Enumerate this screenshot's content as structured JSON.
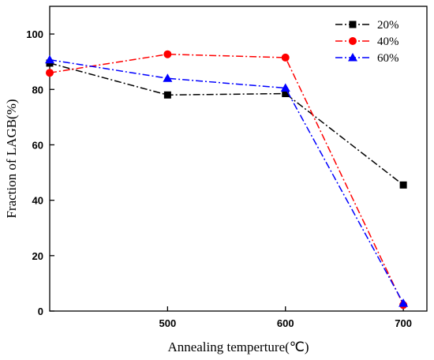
{
  "chart_data": {
    "type": "line",
    "xlabel": "Annealing temperture(℃)",
    "ylabel": "Fraction of LAGB(%)",
    "xlim": [
      400,
      720
    ],
    "ylim": [
      0,
      110
    ],
    "x_ticks": [
      500,
      600,
      700
    ],
    "x_tick_labels": [
      "500",
      "600",
      "700"
    ],
    "y_ticks": [
      0,
      20,
      40,
      60,
      80,
      100
    ],
    "y_tick_labels": [
      "0",
      "20",
      "40",
      "60",
      "80",
      "100"
    ],
    "legend_position": "top-right",
    "grid": false,
    "series": [
      {
        "name": "20%",
        "color": "#000000",
        "marker": "square",
        "x": [
          400,
          500,
          600,
          700
        ],
        "values": [
          89.5,
          78.0,
          78.5,
          45.5
        ]
      },
      {
        "name": "40%",
        "color": "#ff0000",
        "marker": "circle",
        "x": [
          400,
          500,
          600,
          700
        ],
        "values": [
          86.0,
          92.7,
          91.5,
          2.2
        ]
      },
      {
        "name": "60%",
        "color": "#0000ff",
        "marker": "triangle",
        "x": [
          400,
          500,
          600,
          700
        ],
        "values": [
          90.7,
          84.0,
          80.5,
          2.8
        ]
      }
    ]
  }
}
